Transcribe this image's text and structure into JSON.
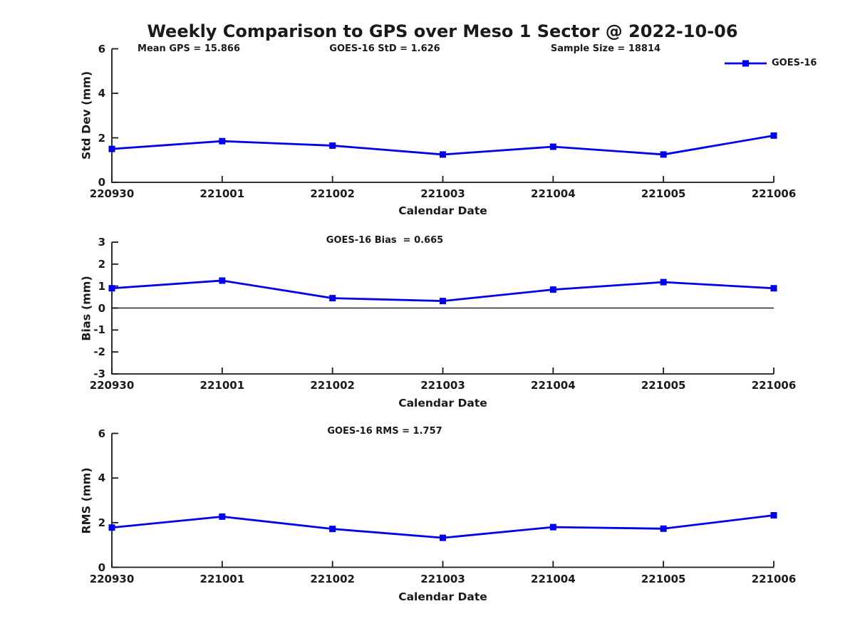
{
  "page": {
    "title": "Weekly Comparison to GPS over Meso 1 Sector @ 2022-10-06",
    "legend": {
      "label": "GOES-16"
    }
  },
  "colors": {
    "series": "#0000EE",
    "axis": "#1a1a1a",
    "text": "#1a1a1a",
    "zero_line": "#000000",
    "background": "#ffffff"
  },
  "chart_data": [
    {
      "type": "line",
      "ylabel": "Std Dev (mm)",
      "xlabel": "Calendar Date",
      "ylim": [
        0,
        6
      ],
      "yticks": [
        0,
        2,
        4,
        6
      ],
      "categories": [
        "220930",
        "221001",
        "221002",
        "221003",
        "221004",
        "221005",
        "221006"
      ],
      "series": [
        {
          "name": "GOES-16",
          "values": [
            1.5,
            1.85,
            1.65,
            1.25,
            1.6,
            1.25,
            2.1
          ]
        }
      ],
      "annotations": [
        "Mean GPS = 15.866",
        "GOES-16 StD = 1.626",
        "Sample Size = 18814"
      ],
      "legend": "GOES-16",
      "legend_position": "top-right",
      "marker": "square",
      "grid": false
    },
    {
      "type": "line",
      "ylabel": "Bias (mm)",
      "xlabel": "Calendar Date",
      "ylim": [
        -3,
        3
      ],
      "yticks": [
        3,
        2,
        1,
        0,
        -1,
        -2,
        -3
      ],
      "categories": [
        "220930",
        "221001",
        "221002",
        "221003",
        "221004",
        "221005",
        "221006"
      ],
      "series": [
        {
          "name": "GOES-16",
          "values": [
            0.9,
            1.25,
            0.45,
            0.32,
            0.84,
            1.18,
            0.9
          ]
        }
      ],
      "annotations": [
        "GOES-16 Bias  = 0.665"
      ],
      "zero_line": true,
      "marker": "square",
      "grid": false
    },
    {
      "type": "line",
      "ylabel": "RMS (mm)",
      "xlabel": "Calendar Date",
      "ylim": [
        0,
        6
      ],
      "yticks": [
        0,
        2,
        4,
        6
      ],
      "categories": [
        "220930",
        "221001",
        "221002",
        "221003",
        "221004",
        "221005",
        "221006"
      ],
      "series": [
        {
          "name": "GOES-16",
          "values": [
            1.78,
            2.27,
            1.72,
            1.32,
            1.8,
            1.73,
            2.33
          ]
        }
      ],
      "annotations": [
        "GOES-16 RMS = 1.757"
      ],
      "marker": "square",
      "grid": false
    }
  ]
}
